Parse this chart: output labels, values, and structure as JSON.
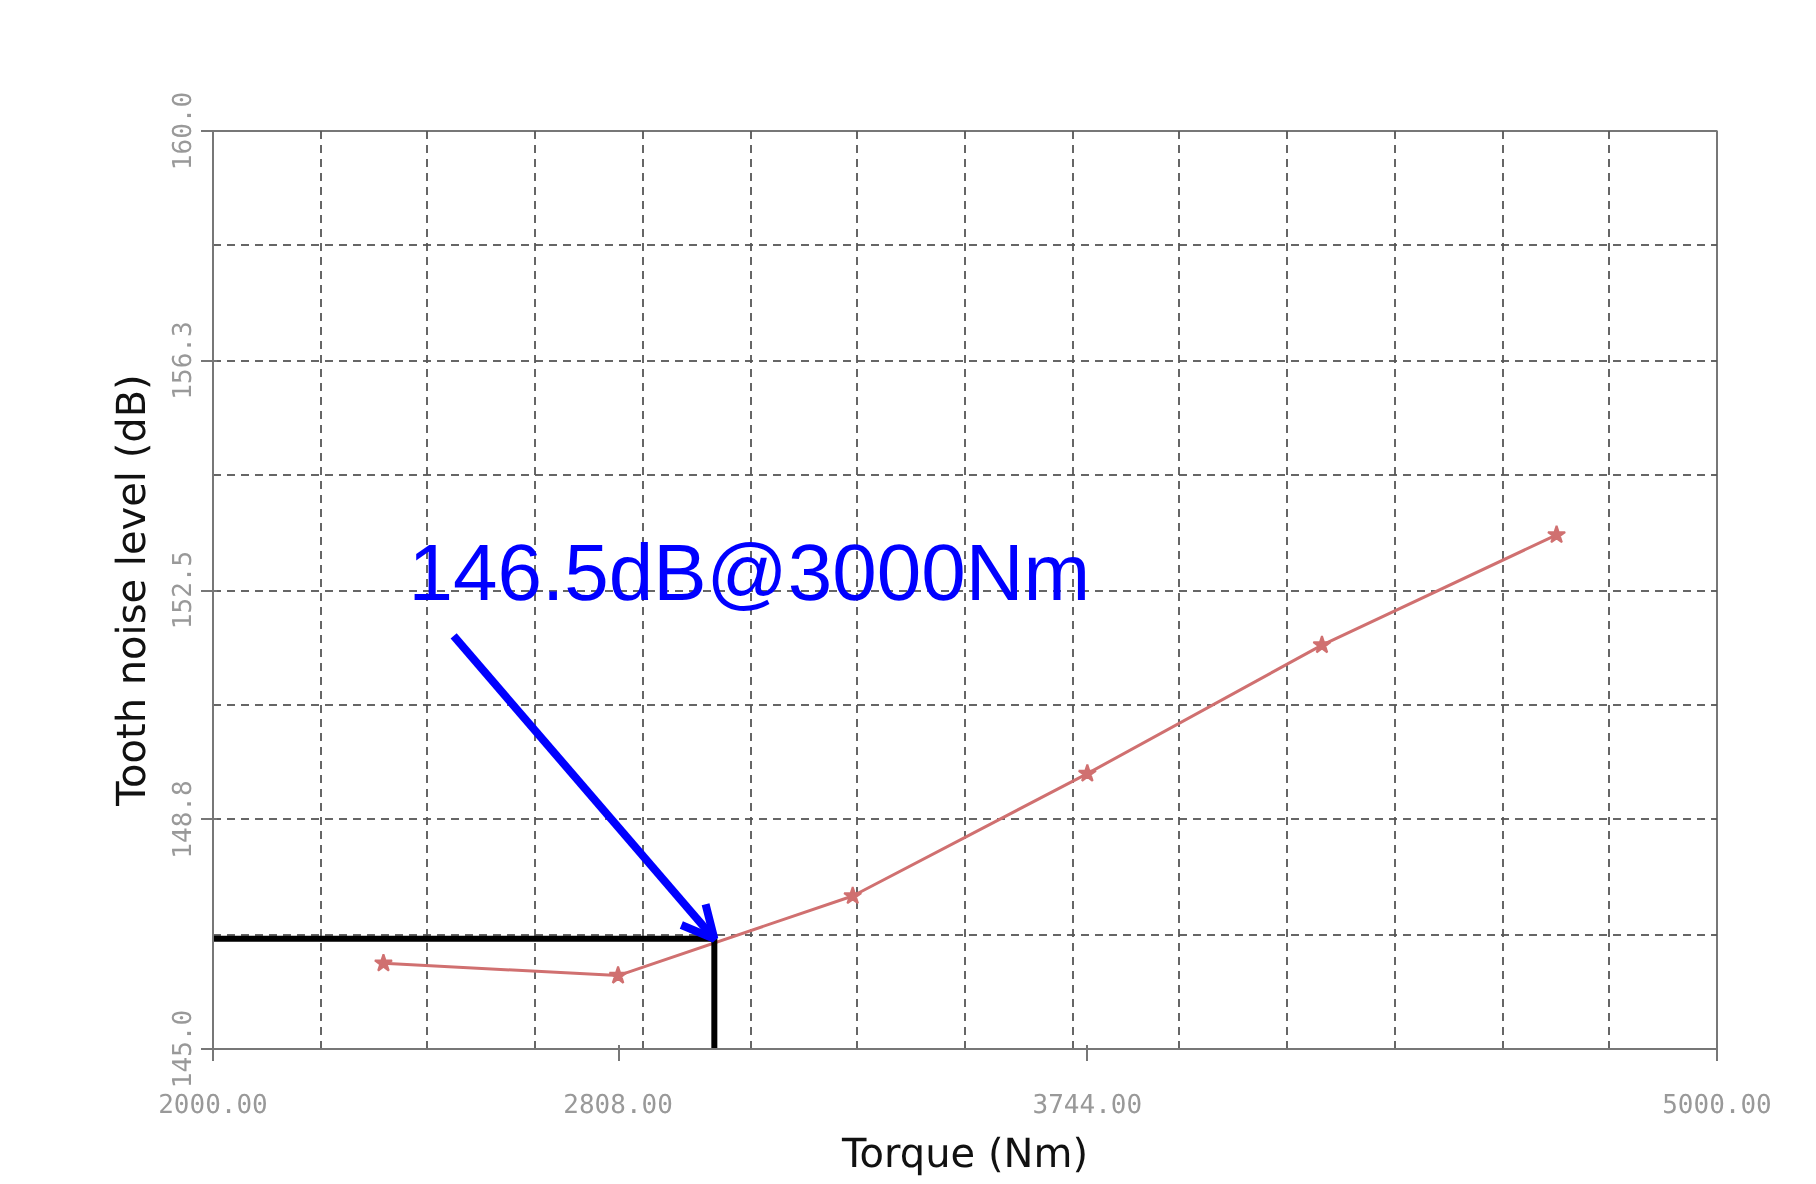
{
  "chart_data": {
    "type": "line",
    "xlabel": "Torque (Nm)",
    "ylabel": "Tooth noise level (dB)",
    "xlim": [
      2000,
      5000
    ],
    "xticks": [
      {
        "value": 2000,
        "label": "2000.00"
      },
      {
        "value": 2808,
        "label": "2808.00"
      },
      {
        "value": 3744,
        "label": "3744.00"
      },
      {
        "value": 5000,
        "label": "5000.00"
      }
    ],
    "ylim": [
      145,
      160
    ],
    "yticks": [
      {
        "value": 145,
        "label": "145.0"
      },
      {
        "value": 148.75,
        "label": "148.8"
      },
      {
        "value": 152.5,
        "label": "152.5"
      },
      {
        "value": 156.25,
        "label": "156.3"
      },
      {
        "value": 160,
        "label": "160.0"
      }
    ],
    "grid": true,
    "marker": "star",
    "line_style": "solid",
    "series": [
      {
        "color": "#d07070",
        "x": [
          2340,
          2808,
          3276,
          3744,
          4212,
          4680
        ],
        "values": [
          146.4,
          146.2,
          147.5,
          149.5,
          151.6,
          153.4
        ]
      },
      {
        "color": "#000000",
        "marker": "none",
        "x": [
          2000,
          3000,
          3000
        ],
        "values": [
          146.8,
          146.8,
          145
        ]
      }
    ],
    "annotations": [
      {
        "text": "146.5dB@3000Nm",
        "x": 3000,
        "y": 146.8
      }
    ]
  }
}
